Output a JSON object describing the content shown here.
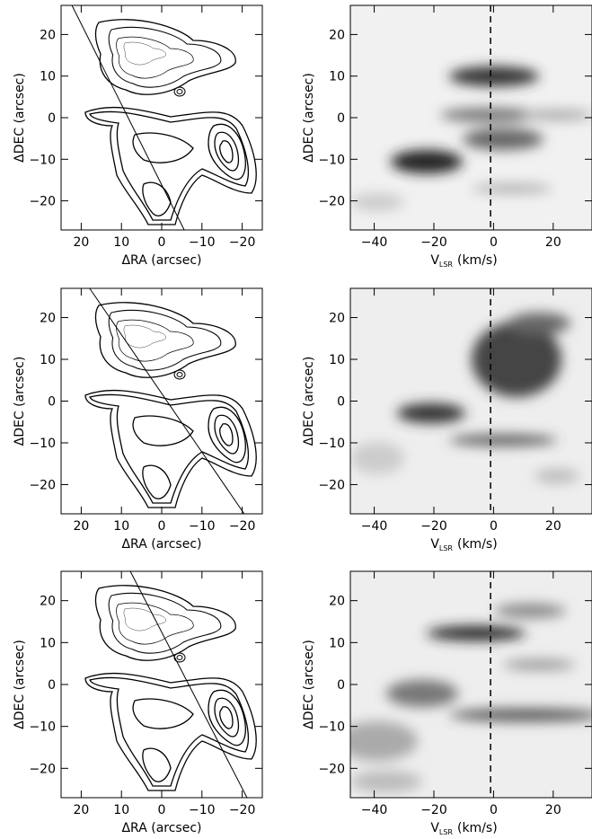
{
  "chart_data": [
    {
      "type": "contour",
      "xlabel": "ΔRA (arcsec)",
      "ylabel": "ΔDEC (arcsec)",
      "xlim": [
        25,
        -25
      ],
      "ylim": [
        -27,
        27
      ],
      "xticks": [
        20,
        10,
        0,
        {
          "value": -10,
          "label": "−10"
        },
        {
          "value": -20,
          "label": "−20"
        }
      ],
      "yticks": [
        {
          "value": -20,
          "label": "−20"
        },
        {
          "value": -10,
          "label": "−10"
        },
        0,
        10,
        20
      ],
      "slit": {
        "x": [
          22.3,
          -5.6
        ],
        "y": [
          27,
          -27
        ]
      }
    },
    {
      "type": "image",
      "xlabel": {
        "main": "V",
        "sub": "LSR",
        "unit": "(km/s)"
      },
      "ylabel": "ΔDEC (arcsec)",
      "xlim": [
        -48,
        33
      ],
      "ylim": [
        -27,
        27
      ],
      "xticks": [
        {
          "value": -40,
          "label": "−40"
        },
        {
          "value": -20,
          "label": "−20"
        },
        0,
        20
      ],
      "yticks": [
        {
          "value": -20,
          "label": "−20"
        },
        {
          "value": -10,
          "label": "−10"
        },
        0,
        10,
        20
      ],
      "vline": -1
    },
    {
      "type": "contour",
      "xlabel": "ΔRA (arcsec)",
      "ylabel": "ΔDEC (arcsec)",
      "xlim": [
        25,
        -25
      ],
      "ylim": [
        -27,
        27
      ],
      "xticks": [
        20,
        10,
        0,
        {
          "value": -10,
          "label": "−10"
        },
        {
          "value": -20,
          "label": "−20"
        }
      ],
      "yticks": [
        {
          "value": -20,
          "label": "−20"
        },
        {
          "value": -10,
          "label": "−10"
        },
        0,
        10,
        20
      ],
      "slit": {
        "x": [
          17.9,
          -20.5
        ],
        "y": [
          27,
          -27
        ]
      }
    },
    {
      "type": "image",
      "xlabel": {
        "main": "V",
        "sub": "LSR",
        "unit": "(km/s)"
      },
      "ylabel": "ΔDEC (arcsec)",
      "xlim": [
        -48,
        33
      ],
      "ylim": [
        -27,
        27
      ],
      "xticks": [
        {
          "value": -40,
          "label": "−40"
        },
        {
          "value": -20,
          "label": "−20"
        },
        0,
        20
      ],
      "yticks": [
        {
          "value": -20,
          "label": "−20"
        },
        {
          "value": -10,
          "label": "−10"
        },
        0,
        10,
        20
      ],
      "vline": -1
    },
    {
      "type": "contour",
      "xlabel": "ΔRA (arcsec)",
      "ylabel": "ΔDEC (arcsec)",
      "xlim": [
        25,
        -25
      ],
      "ylim": [
        -27,
        27
      ],
      "xticks": [
        20,
        10,
        0,
        {
          "value": -10,
          "label": "−10"
        },
        {
          "value": -20,
          "label": "−20"
        }
      ],
      "yticks": [
        {
          "value": -20,
          "label": "−20"
        },
        {
          "value": -10,
          "label": "−10"
        },
        0,
        10,
        20
      ],
      "slit": {
        "x": [
          7.8,
          -21.2
        ],
        "y": [
          27,
          -27
        ]
      }
    },
    {
      "type": "image",
      "xlabel": {
        "main": "V",
        "sub": "LSR",
        "unit": "(km/s)"
      },
      "ylabel": "ΔDEC (arcsec)",
      "xlim": [
        -48,
        33
      ],
      "ylim": [
        -27,
        27
      ],
      "xticks": [
        {
          "value": -40,
          "label": "−40"
        },
        {
          "value": -20,
          "label": "−20"
        },
        0,
        20
      ],
      "yticks": [
        {
          "value": -20,
          "label": "−20"
        },
        {
          "value": -10,
          "label": "−10"
        },
        0,
        10,
        20
      ],
      "vline": -1
    }
  ]
}
